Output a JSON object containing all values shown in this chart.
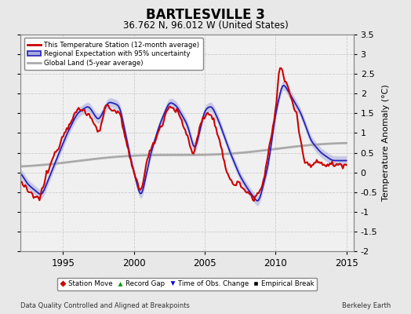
{
  "title": "BARTLESVILLE 3",
  "subtitle": "36.762 N, 96.012 W (United States)",
  "ylabel": "Temperature Anomaly (°C)",
  "footer_left": "Data Quality Controlled and Aligned at Breakpoints",
  "footer_right": "Berkeley Earth",
  "xlim": [
    1992.0,
    2015.5
  ],
  "ylim": [
    -2.0,
    3.5
  ],
  "yticks": [
    -2,
    -1.5,
    -1,
    -0.5,
    0,
    0.5,
    1,
    1.5,
    2,
    2.5,
    3,
    3.5
  ],
  "xticks": [
    1995,
    2000,
    2005,
    2010,
    2015
  ],
  "bg_color": "#e8e8e8",
  "plot_bg_color": "#f0f0f0",
  "red_color": "#cc0000",
  "blue_color": "#2222bb",
  "band_color": "#aaaadd",
  "gray_color": "#aaaaaa",
  "legend_labels": [
    "This Temperature Station (12-month average)",
    "Regional Expectation with 95% uncertainty",
    "Global Land (5-year average)"
  ],
  "marker_legend": [
    {
      "marker": "D",
      "color": "#cc0000",
      "label": "Station Move"
    },
    {
      "marker": "^",
      "color": "#009900",
      "label": "Record Gap"
    },
    {
      "marker": "v",
      "color": "#0000cc",
      "label": "Time of Obs. Change"
    },
    {
      "marker": "s",
      "color": "#000000",
      "label": "Empirical Break"
    }
  ]
}
